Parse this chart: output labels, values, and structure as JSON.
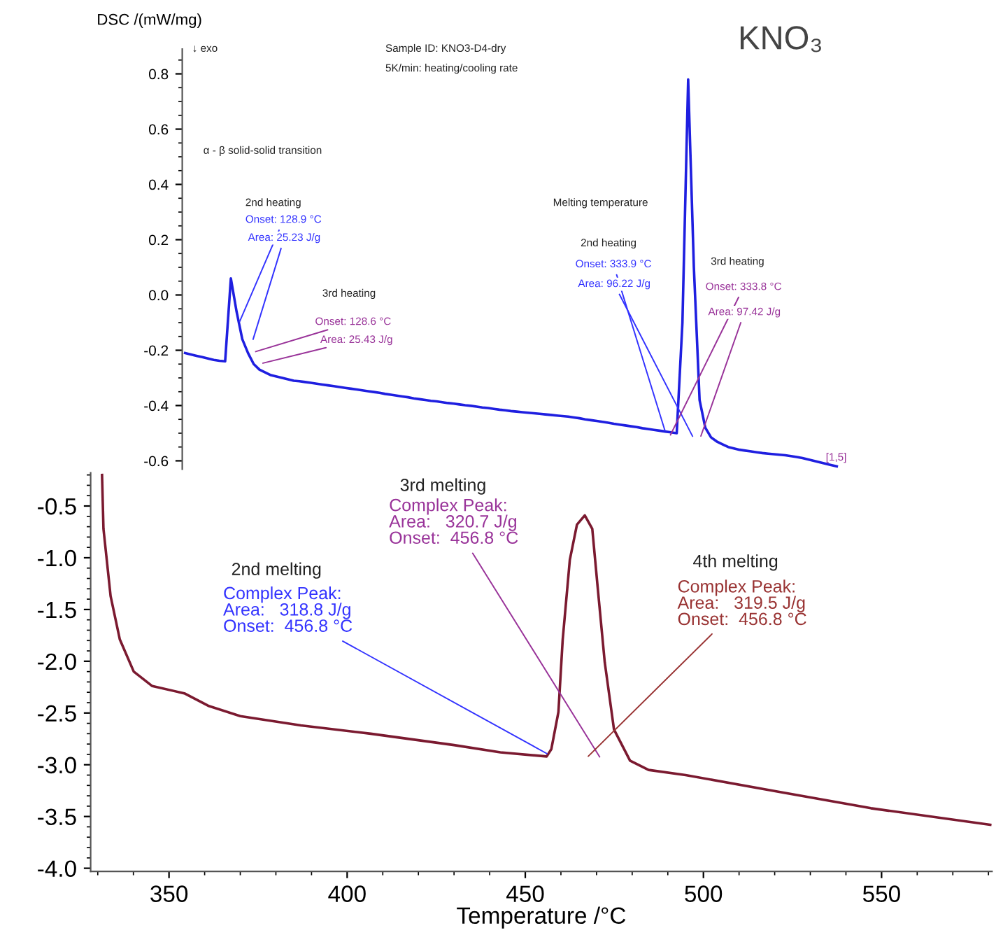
{
  "chart_data": [
    {
      "type": "line",
      "title": "KNO₃",
      "ylabel": "DSC /(mW/mg)",
      "tick_labels": "y",
      "categories": [
        null,
        null,
        null,
        null,
        null,
        null,
        null,
        null,
        null,
        null,
        null,
        null,
        null,
        null,
        null,
        null,
        null,
        null,
        null,
        null,
        null,
        null,
        null,
        null,
        null,
        null,
        null,
        null,
        null,
        null,
        null,
        null,
        null,
        null,
        null,
        null,
        null,
        null,
        null,
        null,
        null,
        null,
        null,
        null,
        null,
        null,
        null,
        null,
        null,
        null,
        null,
        null,
        null,
        null,
        null,
        null,
        null,
        null,
        null,
        null,
        null,
        null,
        null,
        null,
        null,
        null,
        null,
        null,
        null,
        null,
        null,
        null,
        null,
        null,
        null,
        null,
        null,
        null,
        null,
        null,
        null,
        null,
        null,
        null,
        null,
        null,
        null,
        null,
        null,
        null,
        null,
        null,
        null,
        null,
        null,
        null,
        null,
        null,
        null,
        null,
        null,
        null,
        null,
        null,
        null,
        null,
        null,
        null,
        null,
        null,
        null,
        null,
        null,
        null,
        null
      ],
      "series": [
        {
          "color": "#1f1fe0",
          "values": [
            -0.21,
            -0.215,
            -0.22,
            -0.225,
            -0.23,
            -0.235,
            -0.238,
            -0.24,
            0.06,
            -0.06,
            -0.16,
            -0.21,
            -0.25,
            -0.27,
            -0.28,
            -0.29,
            -0.295,
            -0.3,
            -0.305,
            -0.31,
            -0.312,
            -0.315,
            -0.318,
            -0.321,
            -0.324,
            -0.327,
            -0.33,
            -0.333,
            -0.336,
            -0.339,
            -0.342,
            -0.345,
            -0.348,
            -0.351,
            -0.354,
            -0.358,
            -0.361,
            -0.364,
            -0.367,
            -0.37,
            -0.374,
            -0.377,
            -0.38,
            -0.383,
            -0.385,
            -0.388,
            -0.391,
            -0.393,
            -0.396,
            -0.399,
            -0.401,
            -0.404,
            -0.407,
            -0.409,
            -0.412,
            -0.415,
            -0.417,
            -0.42,
            -0.422,
            -0.424,
            -0.426,
            -0.428,
            -0.43,
            -0.432,
            -0.434,
            -0.436,
            -0.438,
            -0.44,
            -0.443,
            -0.446,
            -0.45,
            -0.453,
            -0.456,
            -0.459,
            -0.462,
            -0.466,
            -0.469,
            -0.472,
            -0.475,
            -0.478,
            -0.482,
            -0.485,
            -0.488,
            -0.491,
            -0.494,
            -0.497,
            -0.5,
            -0.1,
            0.78,
            0.1,
            -0.38,
            -0.48,
            -0.515,
            -0.53,
            -0.54,
            -0.55,
            -0.555,
            -0.56,
            -0.563,
            -0.566,
            -0.569,
            -0.572,
            -0.574,
            -0.576,
            -0.578,
            -0.58,
            -0.583,
            -0.586,
            -0.59,
            -0.595,
            -0.6,
            -0.605,
            -0.61,
            -0.615,
            -0.62
          ]
        }
      ],
      "ylim": [
        -0.63,
        0.89
      ],
      "yticks": [
        -0.6,
        -0.4,
        -0.2,
        {
          "value": 0,
          "label": "0.0"
        },
        0.2,
        0.4,
        0.6,
        0.8
      ],
      "annotations": [
        "↓ exo",
        "Sample ID: KNO3-D4-dry",
        "5K/min: heating/cooling rate",
        "α - β solid-solid transition",
        "2nd heating",
        "Onset: 128.9 °C",
        "Area: 25.23 J/g",
        "3rd heating",
        "Onset: 128.6 °C",
        "Area: 25.43 J/g",
        "Melting temperature",
        "2nd heating",
        "Onset: 333.9 °C",
        "Area: 96.22 J/g",
        "3rd heating",
        "Onset: 333.8 °C",
        "Area: 97.42 J/g",
        "[1,5]"
      ]
    },
    {
      "type": "line",
      "xlabel": "Temperature /°C",
      "x": [
        331.2,
        331.6,
        333.6,
        336.2,
        340.1,
        345.3,
        354.3,
        361,
        370,
        387,
        406.6,
        430,
        443,
        456,
        457.3,
        459.3,
        460.5,
        462.5,
        464.5,
        466.7,
        468.8,
        470.3,
        472.3,
        474.9,
        479.4,
        484.6,
        495,
        521,
        547,
        580.5
      ],
      "series": [
        {
          "color": "#7b1a30",
          "values": [
            -0.2,
            -0.72,
            -1.37,
            -1.79,
            -2.1,
            -2.24,
            -2.31,
            -2.43,
            -2.53,
            -2.62,
            -2.7,
            -2.81,
            -2.88,
            -2.92,
            -2.85,
            -2.49,
            -1.79,
            -1.02,
            -0.68,
            -0.59,
            -0.72,
            -1.28,
            -2.01,
            -2.66,
            -2.96,
            -3.05,
            -3.1,
            -3.26,
            -3.42,
            -3.58
          ]
        }
      ],
      "xlim": [
        328,
        581
      ],
      "xticks": [
        350,
        400,
        450,
        500,
        550
      ],
      "ylim": [
        -4.03,
        -0.18
      ],
      "yticks": [
        {
          "value": -4,
          "label": "-4.0"
        },
        -3.5,
        {
          "value": -3,
          "label": "-3.0"
        },
        -2.5,
        {
          "value": -2,
          "label": "-2.0"
        },
        -1.5,
        {
          "value": -1,
          "label": "-1.0"
        },
        -0.5
      ],
      "annotations": [
        "2nd melting",
        {
          "text": "Complex Peak:\nArea:   318.8 J/g\nOnset:  456.8 °C",
          "x": 457,
          "y": -2.91
        },
        "3rd melting",
        "Complex Peak:\nArea:   320.7 J/g\nOnset:  456.8 °C",
        "4th melting",
        "Complex Peak:\nArea:   319.5 J/g\nOnset:  456.8 °C"
      ]
    }
  ]
}
